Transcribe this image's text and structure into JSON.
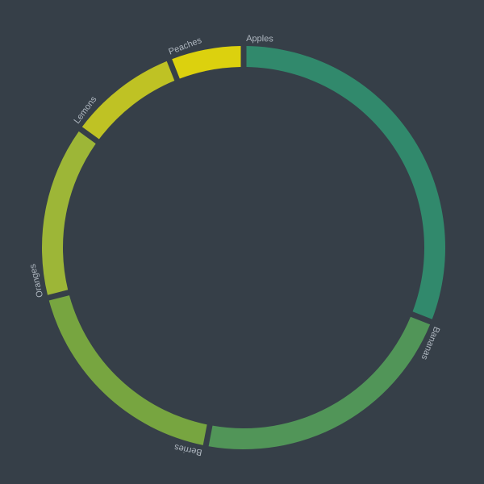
{
  "chart_data": {
    "type": "pie",
    "variant": "donut",
    "start": "top",
    "direction": "clockwise",
    "background": "#363f48",
    "label_color": "#aeb6bf",
    "slices": [
      {
        "label": "Apples",
        "value": 31,
        "color": "#31896c"
      },
      {
        "label": "Bananas",
        "value": 22,
        "color": "#519558"
      },
      {
        "label": "Berries",
        "value": 18,
        "color": "#77a540"
      },
      {
        "label": "Oranges",
        "value": 14,
        "color": "#9db637"
      },
      {
        "label": "Lemons",
        "value": 9,
        "color": "#bfc224"
      },
      {
        "label": "Peaches",
        "value": 6,
        "color": "#dcd10e"
      }
    ]
  }
}
